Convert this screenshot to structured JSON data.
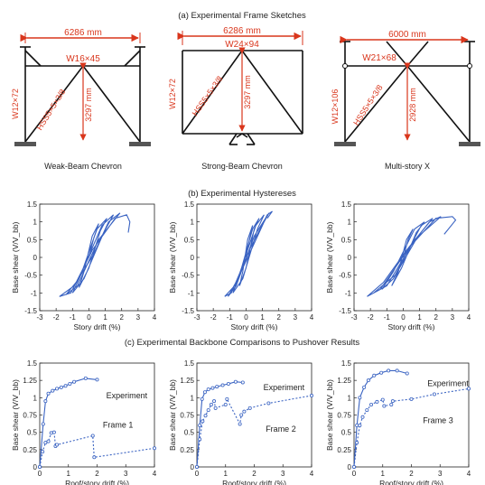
{
  "section_titles": {
    "a": "(a) Experimental Frame Sketches",
    "b": "(b) Experimental Hystereses",
    "c": "(c) Experimental Backbone Comparisons to Pushover Results"
  },
  "colors": {
    "series": "#3a63c2",
    "dimension": "#d9361c",
    "frame": "#111111",
    "support": "#555555"
  },
  "frames": [
    {
      "name": "Weak-Beam Chevron",
      "span": "6286 mm",
      "beam": "W16×45",
      "column": "W12×72",
      "brace": "HSS5×5×3/8",
      "height": "3297 mm"
    },
    {
      "name": "Strong-Beam Chevron",
      "span": "6286 mm",
      "beam": "W24×94",
      "column": "W12×72",
      "brace": "HSS5×5×3/8",
      "height": "3297 mm"
    },
    {
      "name": "Multi-story X",
      "span": "6000 mm",
      "beam": "W21×68",
      "column": "W12×106",
      "brace": "HSS5×5×3/8",
      "height": "2928 mm"
    }
  ],
  "chart_data": [
    {
      "type": "line",
      "panel": "hysteresis-1",
      "xlabel": "Story drift (%)",
      "ylabel": "Base shear (V/V_bb)",
      "xlim": [
        -3,
        4
      ],
      "ylim": [
        -1.5,
        1.5
      ],
      "xticks": [
        -3,
        -2,
        -1,
        0,
        1,
        2,
        3,
        4
      ],
      "yticks": [
        -1.5,
        -1,
        -0.5,
        0,
        0.5,
        1,
        1.5
      ],
      "series": [
        {
          "x": [
            0,
            0.3,
            0.6,
            0.2,
            -0.3,
            -0.6,
            0,
            0.7,
            1.1,
            0.5,
            -0.5,
            -1.0,
            -0.3,
            0.9,
            1.5,
            0.8,
            -0.6,
            -1.4,
            -0.7,
            0.6,
            1.9,
            1.2,
            0.3,
            -0.9,
            -1.8,
            -1.1,
            0.2,
            1.6,
            2.3,
            2.5,
            2.4
          ],
          "y": [
            0,
            0.55,
            0.95,
            0.6,
            -0.4,
            -0.85,
            -0.3,
            0.75,
            1.1,
            0.8,
            -0.5,
            -1.0,
            -0.6,
            0.7,
            1.2,
            0.9,
            -0.6,
            -1.05,
            -0.8,
            0.5,
            1.25,
            1.0,
            0.1,
            -0.8,
            -1.1,
            -1.0,
            0.2,
            1.1,
            1.2,
            1.0,
            0.7
          ]
        }
      ]
    },
    {
      "type": "line",
      "panel": "hysteresis-2",
      "xlabel": "Story drift (%)",
      "ylabel": "Base shear (V/V_bb)",
      "xlim": [
        -3,
        4
      ],
      "ylim": [
        -1.5,
        1.5
      ],
      "xticks": [
        -3,
        -2,
        -1,
        0,
        1,
        2,
        3,
        4
      ],
      "yticks": [
        -1.5,
        -1,
        -0.5,
        0,
        0.5,
        1,
        1.5
      ],
      "series": [
        {
          "x": [
            0,
            0.2,
            0.4,
            0.1,
            -0.2,
            -0.4,
            0,
            0.5,
            0.8,
            0.4,
            -0.4,
            -0.8,
            -0.2,
            0.7,
            1.1,
            0.6,
            -0.5,
            -1.1,
            -0.6,
            0.5,
            1.4,
            1.1,
            0.2,
            -0.7,
            -1.3,
            -0.9,
            0.3,
            1.3,
            1.6,
            1.3
          ],
          "y": [
            0,
            0.5,
            0.9,
            0.5,
            -0.4,
            -0.8,
            -0.3,
            0.8,
            1.1,
            0.8,
            -0.5,
            -1.0,
            -0.6,
            0.8,
            1.2,
            0.9,
            -0.6,
            -1.1,
            -0.8,
            0.6,
            1.25,
            1.0,
            0.1,
            -0.8,
            -1.1,
            -1.0,
            0.3,
            1.2,
            1.3,
            1.1
          ]
        }
      ]
    },
    {
      "type": "line",
      "panel": "hysteresis-3",
      "xlabel": "Story drift (%)",
      "ylabel": "Base shear (V/V_bb)",
      "xlim": [
        -3,
        4
      ],
      "ylim": [
        -1.5,
        1.5
      ],
      "xticks": [
        -3,
        -2,
        -1,
        0,
        1,
        2,
        3,
        4
      ],
      "yticks": [
        -1.5,
        -1,
        -0.5,
        0,
        0.5,
        1,
        1.5
      ],
      "series": [
        {
          "x": [
            0,
            0.3,
            0.6,
            0.2,
            -0.3,
            -0.7,
            -0.1,
            0.8,
            1.3,
            0.7,
            -0.6,
            -1.3,
            -0.6,
            0.9,
            1.8,
            1.1,
            -0.5,
            -1.8,
            -1.0,
            0.7,
            2.3,
            1.6,
            0.2,
            -1.2,
            -2.2,
            -1.4,
            0.4,
            2.0,
            3.0,
            3.2,
            2.5
          ],
          "y": [
            0,
            0.5,
            0.8,
            0.5,
            -0.4,
            -0.8,
            -0.3,
            0.7,
            1.0,
            0.8,
            -0.4,
            -0.9,
            -0.6,
            0.6,
            1.1,
            0.9,
            -0.5,
            -1.0,
            -0.8,
            0.5,
            1.15,
            1.0,
            0.2,
            -0.7,
            -1.1,
            -0.9,
            0.3,
            1.1,
            1.15,
            1.05,
            0.65
          ]
        }
      ]
    },
    {
      "type": "line",
      "panel": "backbone-1",
      "xlabel": "Roof/story drift (%)",
      "ylabel": "Base shear (V/V_bb)",
      "xlim": [
        0,
        4
      ],
      "ylim": [
        0,
        1.5
      ],
      "xticks": [
        0,
        1,
        2,
        3,
        4
      ],
      "yticks": [
        0,
        0.25,
        0.5,
        0.75,
        1,
        1.25,
        1.5
      ],
      "annotations": [
        "Experiment",
        "Frame 1"
      ],
      "series": [
        {
          "name": "Experiment",
          "style": "solid",
          "x": [
            0,
            0.12,
            0.2,
            0.3,
            0.45,
            0.6,
            0.75,
            0.9,
            1.05,
            1.2,
            1.6,
            2.0
          ],
          "y": [
            0,
            0.62,
            0.95,
            1.06,
            1.1,
            1.13,
            1.15,
            1.17,
            1.2,
            1.23,
            1.28,
            1.26
          ]
        },
        {
          "name": "Frame 1",
          "style": "dashed",
          "x": [
            0,
            0.1,
            0.2,
            0.3,
            0.4,
            0.5,
            0.55,
            0.6,
            1.85,
            1.9,
            4.0
          ],
          "y": [
            0,
            0.22,
            0.35,
            0.37,
            0.49,
            0.5,
            0.3,
            0.32,
            0.45,
            0.14,
            0.27
          ]
        }
      ]
    },
    {
      "type": "line",
      "panel": "backbone-2",
      "xlabel": "Roof/story drift (%)",
      "ylabel": "Base shear (V/V_bb)",
      "xlim": [
        0,
        4
      ],
      "ylim": [
        0,
        1.5
      ],
      "xticks": [
        0,
        1,
        2,
        3,
        4
      ],
      "yticks": [
        0,
        0.25,
        0.5,
        0.75,
        1,
        1.25,
        1.5
      ],
      "annotations": [
        "Experiment",
        "Frame 2"
      ],
      "series": [
        {
          "name": "Experiment",
          "style": "solid",
          "x": [
            0,
            0.1,
            0.18,
            0.28,
            0.4,
            0.55,
            0.7,
            0.9,
            1.1,
            1.35,
            1.6
          ],
          "y": [
            0,
            0.6,
            0.98,
            1.08,
            1.12,
            1.14,
            1.16,
            1.18,
            1.2,
            1.23,
            1.22
          ]
        },
        {
          "name": "Frame 2",
          "style": "dashed",
          "x": [
            0,
            0.1,
            0.2,
            0.3,
            0.4,
            0.5,
            0.6,
            0.65,
            1.0,
            1.05,
            1.5,
            1.55,
            1.65,
            1.85,
            2.5,
            4.0
          ],
          "y": [
            0,
            0.4,
            0.66,
            0.74,
            0.82,
            0.9,
            0.95,
            0.85,
            0.9,
            0.98,
            0.62,
            0.75,
            0.8,
            0.85,
            0.92,
            1.03
          ]
        }
      ]
    },
    {
      "type": "line",
      "panel": "backbone-3",
      "xlabel": "Roof/story drift (%)",
      "ylabel": "Base shear (V/V_bb)",
      "xlim": [
        0,
        4
      ],
      "ylim": [
        0,
        1.5
      ],
      "xticks": [
        0,
        1,
        2,
        3,
        4
      ],
      "yticks": [
        0,
        0.25,
        0.5,
        0.75,
        1,
        1.25,
        1.5
      ],
      "annotations": [
        "Experiment",
        "Frame 3"
      ],
      "series": [
        {
          "name": "Experiment",
          "style": "solid",
          "x": [
            0,
            0.1,
            0.2,
            0.35,
            0.5,
            0.7,
            0.95,
            1.2,
            1.5,
            1.85
          ],
          "y": [
            0,
            0.6,
            1.0,
            1.15,
            1.25,
            1.32,
            1.36,
            1.39,
            1.39,
            1.35
          ]
        },
        {
          "name": "Frame 3",
          "style": "dashed",
          "x": [
            0,
            0.1,
            0.2,
            0.3,
            0.45,
            0.6,
            0.8,
            1.0,
            1.05,
            1.3,
            1.35,
            2.0,
            2.8,
            4.0
          ],
          "y": [
            0,
            0.35,
            0.6,
            0.72,
            0.82,
            0.9,
            0.94,
            0.97,
            0.88,
            0.9,
            0.95,
            0.98,
            1.05,
            1.13
          ]
        }
      ]
    }
  ]
}
